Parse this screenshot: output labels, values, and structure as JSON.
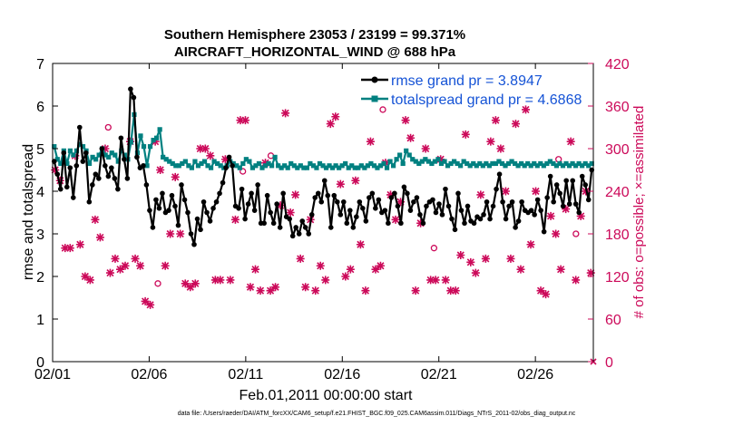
{
  "chart_data": {
    "type": "line",
    "title": "Southern Hemisphere 23053 / 23199 = 99.371%",
    "subtitle": "AIRCRAFT_HORIZONTAL_WIND @ 688 hPa",
    "xlabel": "Feb.01,2011 00:00:00 start",
    "ylabel": "rmse and totalspread",
    "ylabel_right": "# of obs: o=possible; ×=assimilated",
    "footnote": "data file: /Users/raeder/DAI/ATM_forcXX/CAM6_setup/f.e21.FHIST_BGC.f09_025.CAM6assim.011/Diags_NTrS_2011-02/obs_diag_output.nc",
    "x_ticks": [
      "02/01",
      "02/06",
      "02/11",
      "02/16",
      "02/21",
      "02/26"
    ],
    "x_tick_values": [
      0,
      5,
      10,
      15,
      20,
      25
    ],
    "xlim": [
      0,
      28
    ],
    "y_ticks": [
      "0",
      "1",
      "2",
      "3",
      "4",
      "5",
      "6",
      "7"
    ],
    "ylim": [
      0,
      7
    ],
    "y2_ticks": [
      "0",
      "60",
      "120",
      "180",
      "240",
      "300",
      "360",
      "420"
    ],
    "y2lim": [
      0,
      420
    ],
    "colors": {
      "rmse": "#000000",
      "spread": "#008080",
      "obs": "#cc0a5a",
      "legend_text": "#1553d6"
    },
    "series": [
      {
        "name": "rmse grand pr = 3.8947",
        "color": "#000000",
        "values": [
          4.7,
          4.4,
          4.05,
          4.9,
          4.1,
          4.55,
          3.85,
          4.6,
          5.5,
          4.7,
          4.9,
          3.75,
          4.15,
          4.4,
          4.3,
          5.0,
          4.6,
          4.35,
          4.55,
          4.3,
          4.05,
          5.25,
          4.75,
          4.3,
          6.4,
          6.2,
          4.8,
          4.55,
          4.6,
          4.15,
          3.55,
          3.15,
          3.8,
          3.6,
          3.95,
          3.5,
          3.55,
          3.9,
          3.65,
          3.2,
          4.15,
          3.8,
          3.5,
          3.0,
          2.75,
          3.35,
          3.1,
          3.75,
          3.5,
          3.3,
          3.6,
          3.75,
          3.95,
          4.2,
          4.55,
          4.8,
          4.6,
          3.65,
          3.6,
          4.05,
          3.35,
          3.7,
          3.95,
          3.55,
          4.15,
          3.25,
          3.25,
          3.9,
          3.5,
          3.25,
          3.7,
          3.15,
          3.95,
          3.4,
          3.35,
          2.95,
          3.15,
          3.0,
          3.3,
          3.15,
          3.0,
          3.45,
          3.85,
          3.95,
          3.75,
          4.25,
          3.9,
          3.15,
          3.9,
          3.75,
          3.45,
          3.75,
          3.25,
          3.55,
          3.15,
          3.4,
          3.75,
          3.6,
          3.3,
          3.85,
          3.95,
          3.6,
          3.8,
          3.5,
          3.55,
          3.25,
          3.85,
          3.95,
          3.65,
          3.25,
          4.1,
          3.95,
          3.55,
          3.75,
          3.85,
          3.45,
          3.25,
          3.65,
          3.75,
          3.8,
          3.5,
          3.7,
          3.45,
          4.05,
          3.65,
          3.35,
          3.1,
          3.95,
          3.55,
          3.25,
          3.65,
          3.3,
          3.25,
          3.4,
          3.35,
          3.45,
          3.75,
          3.35,
          3.65,
          4.05,
          4.4,
          3.75,
          3.35,
          3.65,
          3.75,
          3.15,
          3.3,
          3.75,
          3.55,
          3.5,
          3.55,
          3.45,
          3.8,
          3.55,
          3.05,
          3.85,
          4.35,
          3.75,
          4.15,
          3.95,
          3.65,
          4.25,
          3.7,
          4.25,
          3.7,
          3.5,
          4.35,
          4.15,
          3.8,
          4.5
        ]
      },
      {
        "name": "totalspread grand pr = 4.6868",
        "color": "#008080",
        "values": [
          5.05,
          4.75,
          4.65,
          4.95,
          4.65,
          4.95,
          4.85,
          4.95,
          5.1,
          5.05,
          4.95,
          4.65,
          4.8,
          4.75,
          4.85,
          5.0,
          4.85,
          4.8,
          4.9,
          4.85,
          4.7,
          4.95,
          4.85,
          4.75,
          5.15,
          5.8,
          4.9,
          5.3,
          5.05,
          4.6,
          5.05,
          5.2,
          5.25,
          5.45,
          4.8,
          4.75,
          4.7,
          4.65,
          4.6,
          4.6,
          4.65,
          4.7,
          4.6,
          4.55,
          4.7,
          4.6,
          4.65,
          4.7,
          4.6,
          4.55,
          4.7,
          4.65,
          4.6,
          4.55,
          4.6,
          4.7,
          4.65,
          4.6,
          4.55,
          4.65,
          4.75,
          4.7,
          4.55,
          4.6,
          4.65,
          4.55,
          4.6,
          4.65,
          4.6,
          4.8,
          4.6,
          4.55,
          4.6,
          4.55,
          4.65,
          4.6,
          4.55,
          4.6,
          4.55,
          4.55,
          4.65,
          4.6,
          4.55,
          4.65,
          4.6,
          4.55,
          4.6,
          4.55,
          4.6,
          4.55,
          4.6,
          4.65,
          4.55,
          4.6,
          4.55,
          4.55,
          4.6,
          4.55,
          4.6,
          4.65,
          4.6,
          4.55,
          4.6,
          4.65,
          4.55,
          4.7,
          4.6,
          4.75,
          4.85,
          4.65,
          4.95,
          4.85,
          4.75,
          4.7,
          4.65,
          4.7,
          4.75,
          4.7,
          4.65,
          4.7,
          4.75,
          4.65,
          4.7,
          4.6,
          4.65,
          4.7,
          4.65,
          4.6,
          4.7,
          4.65,
          4.6,
          4.65,
          4.6,
          4.65,
          4.6,
          4.65,
          4.6,
          4.65,
          4.65,
          4.7,
          4.65,
          4.6,
          4.65,
          4.7,
          4.65,
          4.6,
          4.65,
          4.6,
          4.65,
          4.6,
          4.65,
          4.6,
          4.65,
          4.6,
          4.65,
          4.7,
          4.65,
          4.6,
          4.65,
          4.6,
          4.65,
          4.6,
          4.65,
          4.6,
          4.65,
          4.6,
          4.65,
          4.6,
          4.65
        ]
      }
    ],
    "obs_assimilated": [
      270,
      255,
      160,
      160,
      290,
      165,
      120,
      115,
      200,
      175,
      300,
      125,
      145,
      130,
      135,
      310,
      145,
      135,
      85,
      80,
      310,
      270,
      135,
      180,
      260,
      180,
      110,
      105,
      110,
      300,
      300,
      290,
      115,
      115,
      285,
      115,
      200,
      340,
      340,
      105,
      130,
      100,
      280,
      100,
      105,
      220,
      350,
      210,
      235,
      145,
      105,
      200,
      100,
      135,
      115,
      335,
      345,
      250,
      120,
      130,
      255,
      165,
      100,
      310,
      130,
      135,
      280,
      235,
      200,
      225,
      340,
      315,
      100,
      195,
      300,
      115,
      115,
      285,
      115,
      100,
      100,
      150,
      320,
      140,
      125,
      235,
      145,
      310,
      340,
      300,
      240,
      145,
      335,
      130,
      355,
      165,
      240,
      100,
      95,
      205,
      180,
      130,
      215,
      310,
      115,
      205,
      240,
      125
    ]
  }
}
